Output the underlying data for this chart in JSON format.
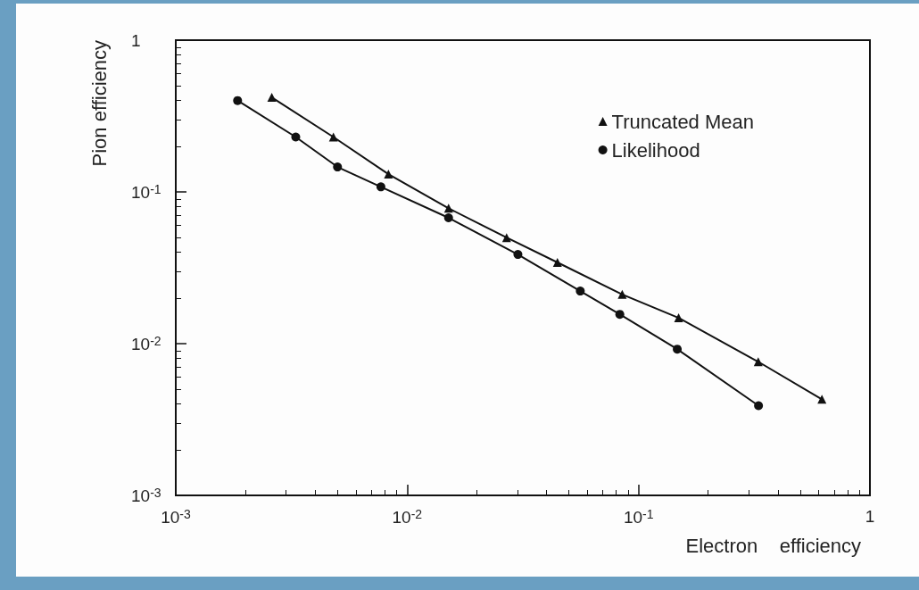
{
  "chart_data": {
    "type": "line",
    "xlabel": "Electron    efficiency",
    "ylabel": "Pion efficiency",
    "log": "xy",
    "xlim": [
      0.001,
      1
    ],
    "ylim": [
      0.001,
      1
    ],
    "xticks": [
      {
        "value": 0.001,
        "label": "10$^{-3}$"
      },
      {
        "value": 0.01,
        "label": "10$^{-2}$"
      },
      {
        "value": 0.1,
        "label": "10$^{-1}$"
      },
      1
    ],
    "yticks": [
      {
        "value": 0.001,
        "label": "10$^{-3}$"
      },
      {
        "value": 0.01,
        "label": "10$^{-2}$"
      },
      {
        "value": 0.1,
        "label": "10$^{-1}$"
      },
      1
    ],
    "grid": false,
    "legend": "top right",
    "line_style": "solid",
    "series": [
      {
        "name": "Truncated Mean",
        "color": "#111111",
        "marker": "triangle",
        "x": [
          0.0026,
          0.0048,
          0.0083,
          0.0151,
          0.0269,
          0.0446,
          0.085,
          0.149,
          0.329,
          0.62
        ],
        "values": [
          0.42,
          0.23,
          0.131,
          0.078,
          0.05,
          0.0343,
          0.0211,
          0.0148,
          0.0076,
          0.0043
        ]
      },
      {
        "name": "Likelihood",
        "color": "#111111",
        "marker": "circle",
        "x": [
          0.00185,
          0.0033,
          0.005,
          0.0077,
          0.0151,
          0.0301,
          0.056,
          0.083,
          0.147,
          0.33
        ],
        "values": [
          0.4,
          0.23,
          0.146,
          0.108,
          0.0675,
          0.0387,
          0.0222,
          0.0156,
          0.0092,
          0.0039
        ]
      }
    ]
  }
}
